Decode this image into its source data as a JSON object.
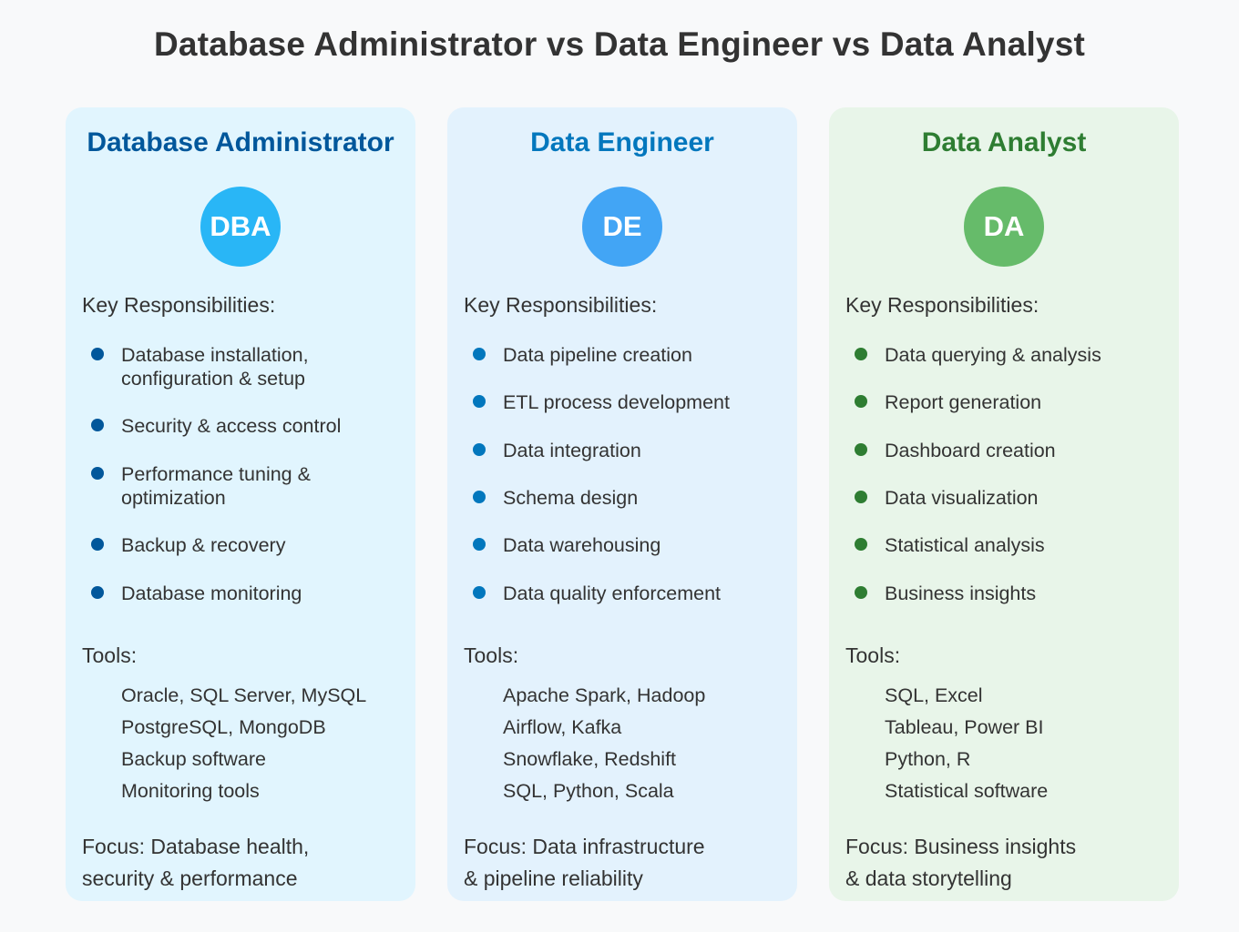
{
  "title": "Database Administrator vs Data Engineer vs Data Analyst",
  "colors": {
    "background": "#f8f9fa",
    "text": "#333333",
    "dba_card": "#e1f5fe",
    "dba_accent": "#01579b",
    "dba_avatar": "#29b6f6",
    "dba_bullet": "#01579b",
    "de_card": "#e3f2fd",
    "de_accent": "#0277bd",
    "de_avatar": "#42a5f5",
    "de_bullet": "#0277bd",
    "da_card": "#e8f5e9",
    "da_accent": "#2e7d32",
    "da_avatar": "#66bb6a",
    "da_bullet": "#2e7d32"
  },
  "roles": [
    {
      "title": "Database Administrator",
      "badge": "DBA",
      "responsibilities_label": "Key Responsibilities:",
      "responsibilities": [
        [
          "Database installation,",
          "configuration & setup"
        ],
        [
          "Security & access control"
        ],
        [
          "Performance tuning &",
          "optimization"
        ],
        [
          "Backup & recovery"
        ],
        [
          "Database monitoring"
        ]
      ],
      "tools_label": "Tools:",
      "tools": [
        "Oracle, SQL Server, MySQL",
        "PostgreSQL, MongoDB",
        "Backup software",
        "Monitoring tools"
      ],
      "focus": [
        "Focus: Database health,",
        "security & performance"
      ]
    },
    {
      "title": "Data Engineer",
      "badge": "DE",
      "responsibilities_label": "Key Responsibilities:",
      "responsibilities": [
        [
          "Data pipeline creation"
        ],
        [
          "ETL process development"
        ],
        [
          "Data integration"
        ],
        [
          "Schema design"
        ],
        [
          "Data warehousing"
        ],
        [
          "Data quality enforcement"
        ]
      ],
      "tools_label": "Tools:",
      "tools": [
        "Apache Spark, Hadoop",
        "Airflow, Kafka",
        "Snowflake, Redshift",
        "SQL, Python, Scala"
      ],
      "focus": [
        "Focus: Data infrastructure",
        "& pipeline reliability"
      ]
    },
    {
      "title": "Data Analyst",
      "badge": "DA",
      "responsibilities_label": "Key Responsibilities:",
      "responsibilities": [
        [
          "Data querying & analysis"
        ],
        [
          "Report generation"
        ],
        [
          "Dashboard creation"
        ],
        [
          "Data visualization"
        ],
        [
          "Statistical analysis"
        ],
        [
          "Business insights"
        ]
      ],
      "tools_label": "Tools:",
      "tools": [
        "SQL, Excel",
        "Tableau, Power BI",
        "Python, R",
        "Statistical software"
      ],
      "focus": [
        "Focus: Business insights",
        "& data storytelling"
      ]
    }
  ]
}
